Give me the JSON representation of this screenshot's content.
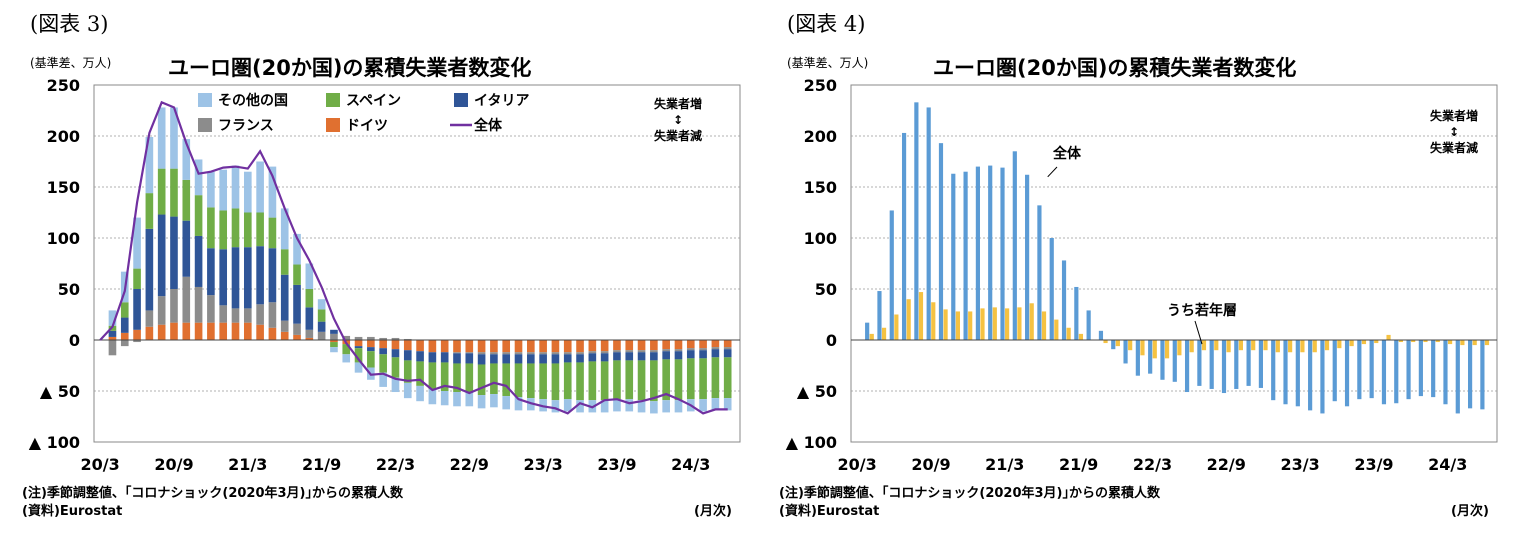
{
  "charts": [
    {
      "fig_label": "(図表 3)",
      "title": "ユーロ圏(20か国)の累積失業者数変化",
      "unit_label": "(基準差、万人)",
      "note": "(注)季節調整値、｢コロナショック(2020年3月)｣からの累積人数",
      "source": "(資料)Eurostat",
      "period_label": "(月次)",
      "direction_up": "失業者増",
      "direction_arrow": "↕",
      "direction_down": "失業者減"
    },
    {
      "fig_label": "(図表 4)",
      "title": "ユーロ圏(20か国)の累積失業者数変化",
      "unit_label": "(基準差、万人)",
      "note": "(注)季節調整値、｢コロナショック(2020年3月)｣からの累積人数",
      "source": "(資料)Eurostat",
      "period_label": "(月次)",
      "direction_up": "失業者増",
      "direction_arrow": "↕",
      "direction_down": "失業者減",
      "annotation_total": "全体",
      "annotation_youth": "うち若年層"
    }
  ],
  "colors": {
    "other": "#9dc3e6",
    "spain": "#70ad47",
    "italy": "#2f5597",
    "france": "#8c8c8c",
    "germany": "#e07030",
    "total_line": "#7030a0",
    "total_bar": "#5b9bd5",
    "youth_bar": "#f5c242",
    "grid": "#999999"
  },
  "chart_data": [
    {
      "type": "bar",
      "stacked": true,
      "ylim": [
        -100,
        250
      ],
      "yticks": [
        {
          "value": 250,
          "label": "250"
        },
        {
          "value": 200,
          "label": "200"
        },
        {
          "value": 150,
          "label": "150"
        },
        {
          "value": 100,
          "label": "100"
        },
        {
          "value": 50,
          "label": "50"
        },
        {
          "value": 0,
          "label": "0"
        },
        {
          "value": -50,
          "label": "▲ 50"
        },
        {
          "value": -100,
          "label": "▲ 100"
        }
      ],
      "xtick_labels": [
        {
          "index": 0,
          "label": "20/3"
        },
        {
          "index": 6,
          "label": "20/9"
        },
        {
          "index": 12,
          "label": "21/3"
        },
        {
          "index": 18,
          "label": "21/9"
        },
        {
          "index": 24,
          "label": "22/3"
        },
        {
          "index": 30,
          "label": "22/9"
        },
        {
          "index": 36,
          "label": "23/3"
        },
        {
          "index": 42,
          "label": "23/9"
        },
        {
          "index": 48,
          "label": "24/3"
        }
      ],
      "n_months": 52,
      "legend": [
        {
          "name": "その他の国",
          "key": "other",
          "kind": "bar"
        },
        {
          "name": "スペイン",
          "key": "spain",
          "kind": "bar"
        },
        {
          "name": "イタリア",
          "key": "italy",
          "kind": "bar"
        },
        {
          "name": "フランス",
          "key": "france",
          "kind": "bar"
        },
        {
          "name": "ドイツ",
          "key": "germany",
          "kind": "bar"
        },
        {
          "name": "全体",
          "key": "total_line",
          "kind": "line"
        }
      ],
      "series": {
        "germany": [
          0,
          3,
          7,
          10,
          13,
          15,
          17,
          17,
          17,
          17,
          17,
          17,
          17,
          15,
          12,
          8,
          5,
          2,
          0,
          -2,
          -4,
          -6,
          -7,
          -8,
          -9,
          -10,
          -11,
          -12,
          -12,
          -12,
          -12,
          -12,
          -12,
          -12,
          -12,
          -12,
          -12,
          -12,
          -12,
          -12,
          -11,
          -11,
          -10,
          -10,
          -10,
          -10,
          -9,
          -9,
          -8,
          -8,
          -7,
          -7
        ],
        "france": [
          0,
          -15,
          -6,
          -2,
          16,
          28,
          33,
          45,
          35,
          27,
          17,
          14,
          14,
          20,
          25,
          11,
          11,
          8,
          8,
          6,
          4,
          3,
          3,
          2,
          2,
          1,
          0,
          0,
          0,
          -1,
          -1,
          -2,
          -2,
          -2,
          -2,
          -2,
          -2,
          -2,
          -2,
          -2,
          -2,
          -2,
          -2,
          -2,
          -2,
          -2,
          -2,
          -2,
          -2,
          -2,
          -2,
          -2
        ],
        "italy": [
          0,
          6,
          15,
          40,
          80,
          80,
          71,
          55,
          50,
          46,
          55,
          60,
          60,
          57,
          53,
          45,
          38,
          22,
          10,
          4,
          0,
          -2,
          -4,
          -6,
          -8,
          -10,
          -10,
          -10,
          -10,
          -10,
          -10,
          -10,
          -9,
          -9,
          -9,
          -9,
          -9,
          -9,
          -8,
          -8,
          -8,
          -8,
          -8,
          -8,
          -8,
          -8,
          -8,
          -8,
          -8,
          -8,
          -8,
          -8
        ],
        "spain": [
          0,
          5,
          15,
          20,
          35,
          45,
          47,
          40,
          40,
          40,
          38,
          38,
          34,
          33,
          30,
          25,
          20,
          18,
          12,
          -5,
          -10,
          -14,
          -16,
          -18,
          -20,
          -22,
          -24,
          -26,
          -28,
          -28,
          -28,
          -30,
          -30,
          -32,
          -33,
          -34,
          -35,
          -36,
          -36,
          -37,
          -38,
          -38,
          -38,
          -38,
          -39,
          -40,
          -40,
          -40,
          -40,
          -40,
          -40,
          -40
        ],
        "other": [
          0,
          15,
          30,
          50,
          55,
          60,
          60,
          40,
          35,
          35,
          40,
          42,
          40,
          50,
          50,
          40,
          30,
          25,
          10,
          -5,
          -8,
          -10,
          -12,
          -14,
          -14,
          -15,
          -15,
          -15,
          -14,
          -14,
          -14,
          -13,
          -13,
          -13,
          -13,
          -12,
          -12,
          -12,
          -12,
          -12,
          -12,
          -12,
          -12,
          -12,
          -12,
          -12,
          -12,
          -12,
          -12,
          -12,
          -12,
          -12
        ],
        "total": [
          0,
          13,
          48,
          135,
          203,
          233,
          228,
          193,
          163,
          165,
          169,
          170,
          168,
          185,
          161,
          129,
          100,
          78,
          52,
          21,
          -3,
          -19,
          -34,
          -33,
          -38,
          -40,
          -39,
          -49,
          -45,
          -47,
          -52,
          -47,
          -42,
          -45,
          -58,
          -62,
          -65,
          -67,
          -72,
          -62,
          -66,
          -59,
          -58,
          -62,
          -60,
          -57,
          -53,
          -58,
          -64,
          -72,
          -68,
          -68
        ]
      }
    },
    {
      "type": "bar",
      "ylim": [
        -100,
        250
      ],
      "yticks": [
        {
          "value": 250,
          "label": "250"
        },
        {
          "value": 200,
          "label": "200"
        },
        {
          "value": 150,
          "label": "150"
        },
        {
          "value": 100,
          "label": "100"
        },
        {
          "value": 50,
          "label": "50"
        },
        {
          "value": 0,
          "label": "0"
        },
        {
          "value": -50,
          "label": "▲ 50"
        },
        {
          "value": -100,
          "label": "▲ 100"
        }
      ],
      "xtick_labels": [
        {
          "index": 0,
          "label": "20/3"
        },
        {
          "index": 6,
          "label": "20/9"
        },
        {
          "index": 12,
          "label": "21/3"
        },
        {
          "index": 18,
          "label": "21/9"
        },
        {
          "index": 24,
          "label": "22/3"
        },
        {
          "index": 30,
          "label": "22/9"
        },
        {
          "index": 36,
          "label": "23/3"
        },
        {
          "index": 42,
          "label": "23/9"
        },
        {
          "index": 48,
          "label": "24/3"
        }
      ],
      "n_months": 52,
      "series": [
        {
          "name": "全体",
          "key": "total_bar",
          "values": [
            0,
            17,
            48,
            127,
            203,
            233,
            228,
            193,
            163,
            165,
            170,
            171,
            169,
            185,
            162,
            132,
            100,
            78,
            52,
            29,
            9,
            -9,
            -23,
            -35,
            -33,
            -39,
            -41,
            -51,
            -45,
            -48,
            -52,
            -48,
            -45,
            -47,
            -59,
            -63,
            -65,
            -69,
            -72,
            -60,
            -65,
            -58,
            -57,
            -63,
            -62,
            -58,
            -55,
            -56,
            -63,
            -72,
            -67,
            -68
          ]
        },
        {
          "name": "うち若年層",
          "key": "youth_bar",
          "values": [
            0,
            6,
            12,
            25,
            40,
            47,
            37,
            30,
            28,
            28,
            31,
            32,
            31,
            32,
            36,
            28,
            20,
            12,
            6,
            0,
            -3,
            -6,
            -10,
            -15,
            -18,
            -18,
            -15,
            -12,
            -10,
            -10,
            -12,
            -10,
            -10,
            -10,
            -12,
            -12,
            -12,
            -12,
            -10,
            -8,
            -6,
            -4,
            -3,
            5,
            -2,
            -2,
            -2,
            -2,
            -4,
            -5,
            -5,
            -5
          ]
        }
      ]
    }
  ]
}
